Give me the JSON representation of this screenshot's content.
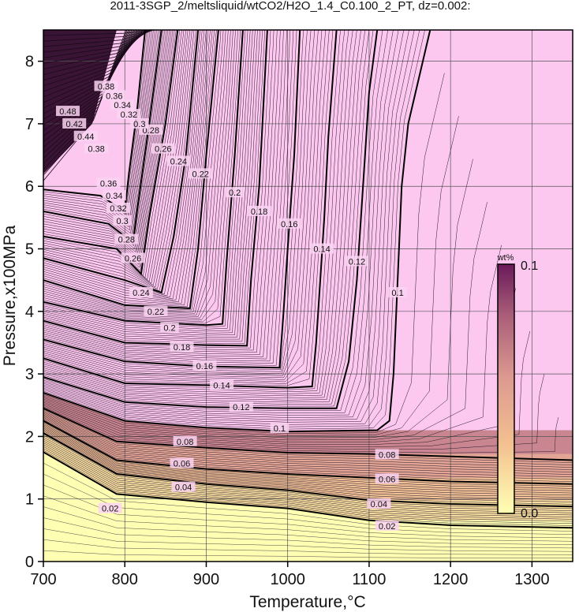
{
  "chart_data": {
    "type": "contour",
    "title": "2011-3SGP_2/meltsliquid/wtCO2/H2O_1.4_C0.100_2_PT, dz=0.002:",
    "xlabel": "Temperature,°C",
    "ylabel": "Pressure,x100MPa",
    "xlim": [
      700,
      1350
    ],
    "ylim": [
      0,
      8.5
    ],
    "xticks": [
      "700",
      "800",
      "900",
      "1000",
      "1100",
      "1200",
      "1300"
    ],
    "yticks": [
      "0",
      "1",
      "2",
      "3",
      "4",
      "5",
      "6",
      "7",
      "8"
    ],
    "grid": true,
    "colorbar": {
      "unit": "wt%",
      "max_label": "0.1",
      "min_label": "0.0",
      "colors": [
        "#ffffb4",
        "#f3c090",
        "#dc9890",
        "#a85c78",
        "#6a1a5a",
        "#fcc8f0"
      ]
    },
    "contour_interval": 0.002,
    "bold_levels": [
      {
        "label": "0.02",
        "points": [
          [
            700,
            1.75
          ],
          [
            790,
            1.08
          ],
          [
            900,
            0.95
          ],
          [
            1000,
            0.85
          ],
          [
            1100,
            0.66
          ],
          [
            1200,
            0.58
          ],
          [
            1350,
            0.54
          ]
        ]
      },
      {
        "label": "0.04",
        "points": [
          [
            700,
            2.05
          ],
          [
            790,
            1.4
          ],
          [
            900,
            1.24
          ],
          [
            1000,
            1.14
          ],
          [
            1100,
            0.98
          ],
          [
            1200,
            0.92
          ],
          [
            1350,
            0.88
          ]
        ]
      },
      {
        "label": "0.06",
        "points": [
          [
            700,
            2.25
          ],
          [
            790,
            1.62
          ],
          [
            900,
            1.48
          ],
          [
            1000,
            1.4
          ],
          [
            1100,
            1.34
          ],
          [
            1200,
            1.28
          ],
          [
            1350,
            1.24
          ]
        ]
      },
      {
        "label": "0.08",
        "points": [
          [
            700,
            2.45
          ],
          [
            790,
            1.92
          ],
          [
            900,
            1.82
          ],
          [
            1000,
            1.74
          ],
          [
            1100,
            1.72
          ],
          [
            1200,
            1.68
          ],
          [
            1350,
            1.62
          ]
        ]
      },
      {
        "label": "0.1",
        "points": [
          [
            700,
            2.7
          ],
          [
            800,
            2.25
          ],
          [
            900,
            2.14
          ],
          [
            1000,
            2.08
          ],
          [
            1110,
            2.1
          ],
          [
            1125,
            2.25
          ],
          [
            1130,
            3.0
          ],
          [
            1135,
            4.5
          ],
          [
            1140,
            6.0
          ],
          [
            1148,
            7.0
          ],
          [
            1175,
            8.5
          ]
        ]
      },
      {
        "label": "0.12",
        "points": [
          [
            700,
            2.95
          ],
          [
            800,
            2.55
          ],
          [
            900,
            2.47
          ],
          [
            1000,
            2.45
          ],
          [
            1060,
            2.45
          ],
          [
            1075,
            3.2
          ],
          [
            1085,
            4.5
          ],
          [
            1090,
            5.5
          ],
          [
            1095,
            6.5
          ],
          [
            1100,
            7.5
          ],
          [
            1110,
            8.5
          ]
        ]
      },
      {
        "label": "0.14",
        "points": [
          [
            700,
            3.25
          ],
          [
            800,
            2.85
          ],
          [
            900,
            2.82
          ],
          [
            1000,
            2.78
          ],
          [
            1030,
            2.8
          ],
          [
            1035,
            3.5
          ],
          [
            1040,
            4.5
          ],
          [
            1045,
            5.5
          ],
          [
            1050,
            6.8
          ],
          [
            1060,
            8.5
          ]
        ]
      },
      {
        "label": "0.16",
        "points": [
          [
            700,
            3.55
          ],
          [
            800,
            3.2
          ],
          [
            900,
            3.12
          ],
          [
            990,
            3.1
          ],
          [
            995,
            4.0
          ],
          [
            1000,
            5.0
          ],
          [
            1008,
            6.5
          ],
          [
            1015,
            8.5
          ]
        ]
      },
      {
        "label": "0.18",
        "points": [
          [
            700,
            3.85
          ],
          [
            800,
            3.5
          ],
          [
            900,
            3.46
          ],
          [
            950,
            3.45
          ],
          [
            955,
            4.5
          ],
          [
            965,
            6.0
          ],
          [
            975,
            8.5
          ]
        ]
      },
      {
        "label": "0.2",
        "points": [
          [
            700,
            4.15
          ],
          [
            800,
            3.85
          ],
          [
            900,
            3.78
          ],
          [
            920,
            3.8
          ],
          [
            925,
            4.8
          ],
          [
            935,
            6.5
          ],
          [
            945,
            8.5
          ]
        ]
      },
      {
        "label": "0.22",
        "points": [
          [
            700,
            4.5
          ],
          [
            800,
            4.1
          ],
          [
            880,
            4.05
          ],
          [
            890,
            5.0
          ],
          [
            900,
            6.5
          ],
          [
            915,
            8.5
          ]
        ]
      },
      {
        "label": "0.24",
        "points": [
          [
            700,
            4.85
          ],
          [
            800,
            4.5
          ],
          [
            845,
            4.3
          ],
          [
            860,
            5.2
          ],
          [
            875,
            6.5
          ],
          [
            890,
            8.5
          ]
        ]
      },
      {
        "label": "0.26",
        "points": [
          [
            700,
            5.2
          ],
          [
            790,
            5.0
          ],
          [
            820,
            4.6
          ],
          [
            830,
            5.5
          ],
          [
            850,
            7.0
          ],
          [
            865,
            8.5
          ]
        ]
      },
      {
        "label": "0.28",
        "points": [
          [
            700,
            5.6
          ],
          [
            780,
            5.4
          ],
          [
            810,
            5.1
          ],
          [
            815,
            5.6
          ],
          [
            830,
            7.0
          ],
          [
            845,
            8.5
          ]
        ]
      },
      {
        "label": "0.3",
        "points": [
          [
            700,
            5.95
          ],
          [
            770,
            5.85
          ],
          [
            800,
            5.6
          ],
          [
            805,
            6.2
          ],
          [
            815,
            7.2
          ],
          [
            825,
            8.5
          ]
        ]
      }
    ],
    "label_positions": [
      {
        "text": "0.02",
        "x": 782,
        "y": 0.85
      },
      {
        "text": "0.02",
        "x": 1122,
        "y": 0.57
      },
      {
        "text": "0.04",
        "x": 872,
        "y": 1.19
      },
      {
        "text": "0.04",
        "x": 1112,
        "y": 0.92
      },
      {
        "text": "0.06",
        "x": 870,
        "y": 1.57
      },
      {
        "text": "0.06",
        "x": 1122,
        "y": 1.32
      },
      {
        "text": "0.08",
        "x": 874,
        "y": 1.92
      },
      {
        "text": "0.08",
        "x": 1122,
        "y": 1.71
      },
      {
        "text": "0.1",
        "x": 990,
        "y": 2.13
      },
      {
        "text": "0.1",
        "x": 1135,
        "y": 4.3
      },
      {
        "text": "0.12",
        "x": 943,
        "y": 2.47
      },
      {
        "text": "0.12",
        "x": 1085,
        "y": 4.8
      },
      {
        "text": "0.14",
        "x": 919,
        "y": 2.82
      },
      {
        "text": "0.14",
        "x": 1042,
        "y": 5.0
      },
      {
        "text": "0.16",
        "x": 898,
        "y": 3.13
      },
      {
        "text": "0.16",
        "x": 1002,
        "y": 5.4
      },
      {
        "text": "0.18",
        "x": 870,
        "y": 3.43
      },
      {
        "text": "0.18",
        "x": 965,
        "y": 5.6
      },
      {
        "text": "0.2",
        "x": 855,
        "y": 3.74
      },
      {
        "text": "0.2",
        "x": 935,
        "y": 5.9
      },
      {
        "text": "0.22",
        "x": 838,
        "y": 4.0
      },
      {
        "text": "0.22",
        "x": 893,
        "y": 6.2
      },
      {
        "text": "0.24",
        "x": 820,
        "y": 4.3
      },
      {
        "text": "0.24",
        "x": 866,
        "y": 6.4
      },
      {
        "text": "0.26",
        "x": 810,
        "y": 4.85
      },
      {
        "text": "0.26",
        "x": 847,
        "y": 6.6
      },
      {
        "text": "0.28",
        "x": 802,
        "y": 5.15
      },
      {
        "text": "0.28",
        "x": 832,
        "y": 6.9
      },
      {
        "text": "0.3",
        "x": 797,
        "y": 5.45
      },
      {
        "text": "0.3",
        "x": 818,
        "y": 7.0
      },
      {
        "text": "0.32",
        "x": 792,
        "y": 5.65
      },
      {
        "text": "0.32",
        "x": 805,
        "y": 7.15
      },
      {
        "text": "0.34",
        "x": 787,
        "y": 5.85
      },
      {
        "text": "0.34",
        "x": 797,
        "y": 7.3
      },
      {
        "text": "0.36",
        "x": 780,
        "y": 6.05
      },
      {
        "text": "0.36",
        "x": 787,
        "y": 7.45
      },
      {
        "text": "0.38",
        "x": 765,
        "y": 6.6
      },
      {
        "text": "0.38",
        "x": 777,
        "y": 7.6
      },
      {
        "text": "0.42",
        "x": 738,
        "y": 7.0
      },
      {
        "text": "0.44",
        "x": 752,
        "y": 6.8
      },
      {
        "text": "0.48",
        "x": 730,
        "y": 7.2
      }
    ]
  }
}
